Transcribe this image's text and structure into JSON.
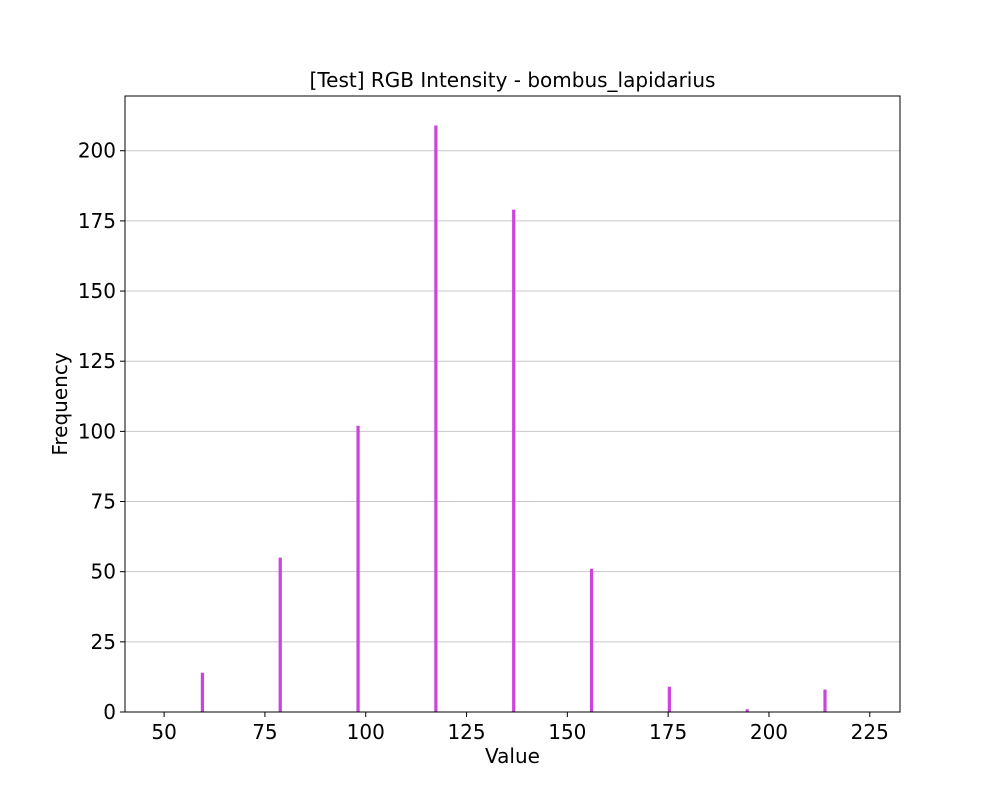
{
  "chart_data": {
    "type": "bar",
    "title": "[Test] RGB Intensity - bombus_lapidarius",
    "xlabel": "Value",
    "ylabel": "Frequency",
    "xlim": [
      40.3,
      232.5
    ],
    "ylim": [
      0,
      219.5
    ],
    "x_ticks": [
      50,
      75,
      100,
      125,
      150,
      175,
      200,
      225
    ],
    "y_ticks": [
      0,
      25,
      50,
      75,
      100,
      125,
      150,
      175,
      200
    ],
    "grid": "y",
    "bar_color": "#cc44dd",
    "bar_width": 0.8,
    "x": [
      59.5,
      78.8,
      98.1,
      117.4,
      136.7,
      156.0,
      175.3,
      194.6,
      213.9
    ],
    "values": [
      14,
      55,
      102,
      209,
      179,
      51,
      9,
      1,
      8
    ]
  }
}
